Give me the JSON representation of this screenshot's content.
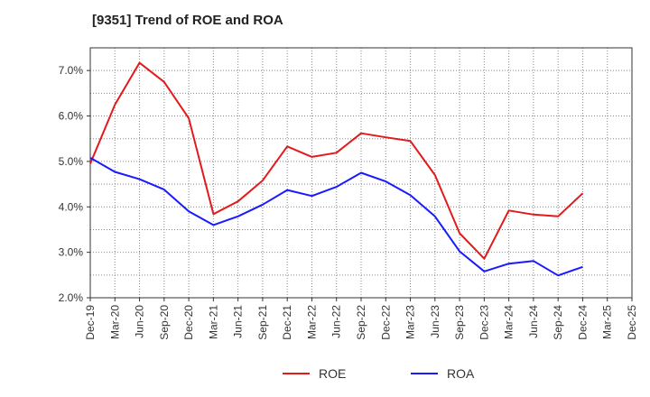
{
  "chart_data": {
    "type": "line",
    "title": "[9351]  Trend of ROE and ROA",
    "xlabel": "",
    "ylabel": "",
    "categories": [
      "Dec-19",
      "Mar-20",
      "Jun-20",
      "Sep-20",
      "Dec-20",
      "Mar-21",
      "Jun-21",
      "Sep-21",
      "Dec-21",
      "Mar-22",
      "Jun-22",
      "Sep-22",
      "Dec-22",
      "Mar-23",
      "Jun-23",
      "Sep-23",
      "Dec-23",
      "Mar-24",
      "Jun-24",
      "Sep-24",
      "Dec-24",
      "Mar-25",
      "Dec-25"
    ],
    "ylim": [
      2.0,
      7.5
    ],
    "yticks": [
      2.0,
      3.0,
      4.0,
      5.0,
      6.0,
      7.0
    ],
    "ytick_labels": [
      "2.0%",
      "3.0%",
      "4.0%",
      "5.0%",
      "6.0%",
      "7.0%"
    ],
    "grid": true,
    "legend_position": "bottom",
    "series": [
      {
        "name": "ROE",
        "color": "#e31a1c",
        "values": [
          4.95,
          6.25,
          7.17,
          6.75,
          5.95,
          3.84,
          4.12,
          4.58,
          5.33,
          5.1,
          5.19,
          5.62,
          5.53,
          5.45,
          4.7,
          3.42,
          2.86,
          3.92,
          3.83,
          3.79,
          4.3,
          null,
          null
        ]
      },
      {
        "name": "ROA",
        "color": "#1a1aff",
        "values": [
          5.08,
          4.77,
          4.61,
          4.38,
          3.9,
          3.6,
          3.79,
          4.05,
          4.37,
          4.24,
          4.44,
          4.75,
          4.56,
          4.26,
          3.79,
          3.02,
          2.58,
          2.75,
          2.81,
          2.49,
          2.68,
          null,
          null
        ]
      }
    ]
  }
}
